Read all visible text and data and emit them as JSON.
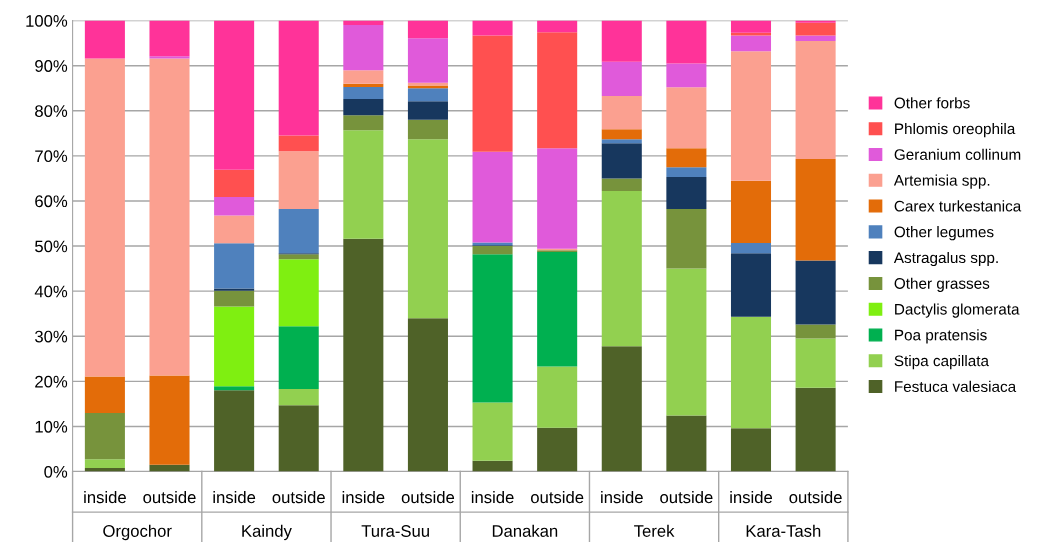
{
  "chart_data": {
    "type": "bar",
    "stacked": true,
    "categories": [
      "inside",
      "outside",
      "inside",
      "outside",
      "inside",
      "outside",
      "inside",
      "outside",
      "inside",
      "outside",
      "inside",
      "outside"
    ],
    "annotations": [
      "Orgochor",
      "Kaindy",
      "Tura-Suu",
      "Danakan",
      "Terek",
      "Kara-Tash"
    ],
    "series": [
      {
        "name": "Festuca valesiaca",
        "color": "#4f6228",
        "values": [
          0.8,
          1.5,
          18.0,
          14.7,
          51.6,
          34.0,
          2.4,
          9.7,
          27.8,
          12.4,
          9.6,
          18.6
        ]
      },
      {
        "name": "Stipa capillata",
        "color": "#92d050",
        "values": [
          1.9,
          0,
          0,
          3.6,
          24.1,
          39.7,
          12.9,
          13.6,
          34.4,
          32.6,
          24.7,
          10.9
        ]
      },
      {
        "name": "Poa pratensis",
        "color": "#00b050",
        "values": [
          0,
          0,
          0.9,
          13.9,
          0,
          0,
          32.9,
          25.4,
          0,
          0,
          0,
          0
        ]
      },
      {
        "name": "Dactylis glomerata",
        "color": "#7fef11",
        "values": [
          0,
          0,
          17.7,
          14.9,
          0,
          0,
          0,
          0,
          0,
          0,
          0,
          0
        ]
      },
      {
        "name": "Other grasses",
        "color": "#77933c",
        "values": [
          10.3,
          0,
          3.5,
          1.1,
          3.3,
          4.3,
          1.8,
          0.4,
          2.8,
          13.2,
          0,
          3.1
        ]
      },
      {
        "name": "Astragalus spp.",
        "color": "#17375e",
        "values": [
          0,
          0,
          0.5,
          0.2,
          3.6,
          4.1,
          0.2,
          0,
          7.8,
          7.1,
          14.1,
          14.2
        ]
      },
      {
        "name": "Other legumes",
        "color": "#4f81bd",
        "values": [
          0,
          0,
          10.0,
          9.8,
          2.7,
          2.9,
          0.6,
          0,
          0.9,
          2.2,
          2.3,
          0
        ]
      },
      {
        "name": "Carex turkestanica",
        "color": "#e36c09",
        "values": [
          8.1,
          19.8,
          0,
          0,
          0.7,
          0.6,
          0,
          0,
          2.2,
          4.2,
          13.8,
          22.5
        ]
      },
      {
        "name": "Artemisia spp.",
        "color": "#fba090",
        "values": [
          70.5,
          70.3,
          6.2,
          12.8,
          3.0,
          0.6,
          0,
          0.3,
          7.4,
          13.5,
          28.7,
          26.2
        ]
      },
      {
        "name": "Geranium collinum",
        "color": "#e05ada",
        "values": [
          0,
          0.5,
          4.1,
          0,
          10.0,
          9.9,
          20.1,
          22.3,
          7.6,
          5.3,
          3.5,
          1.2
        ]
      },
      {
        "name": "Phlomis oreophila",
        "color": "#ff5050",
        "values": [
          0,
          0,
          6.0,
          3.5,
          0,
          0,
          25.8,
          25.7,
          0,
          0,
          0.6,
          2.8
        ]
      },
      {
        "name": "Other forbs",
        "color": "#ff3399",
        "values": [
          8.4,
          7.9,
          33.1,
          25.5,
          1.0,
          3.9,
          3.3,
          2.6,
          9.1,
          9.5,
          2.7,
          0.5
        ]
      }
    ],
    "ylim": [
      0,
      100
    ],
    "yticks": [
      {
        "value": 0,
        "label": "0%"
      },
      {
        "value": 10,
        "label": "10%"
      },
      {
        "value": 20,
        "label": "20%"
      },
      {
        "value": 30,
        "label": "30%"
      },
      {
        "value": 40,
        "label": "40%"
      },
      {
        "value": 50,
        "label": "50%"
      },
      {
        "value": 60,
        "label": "60%"
      },
      {
        "value": 70,
        "label": "70%"
      },
      {
        "value": 80,
        "label": "80%"
      },
      {
        "value": 90,
        "label": "90%"
      },
      {
        "value": 100,
        "label": "100%"
      }
    ],
    "grid": "y",
    "legend": "right"
  }
}
